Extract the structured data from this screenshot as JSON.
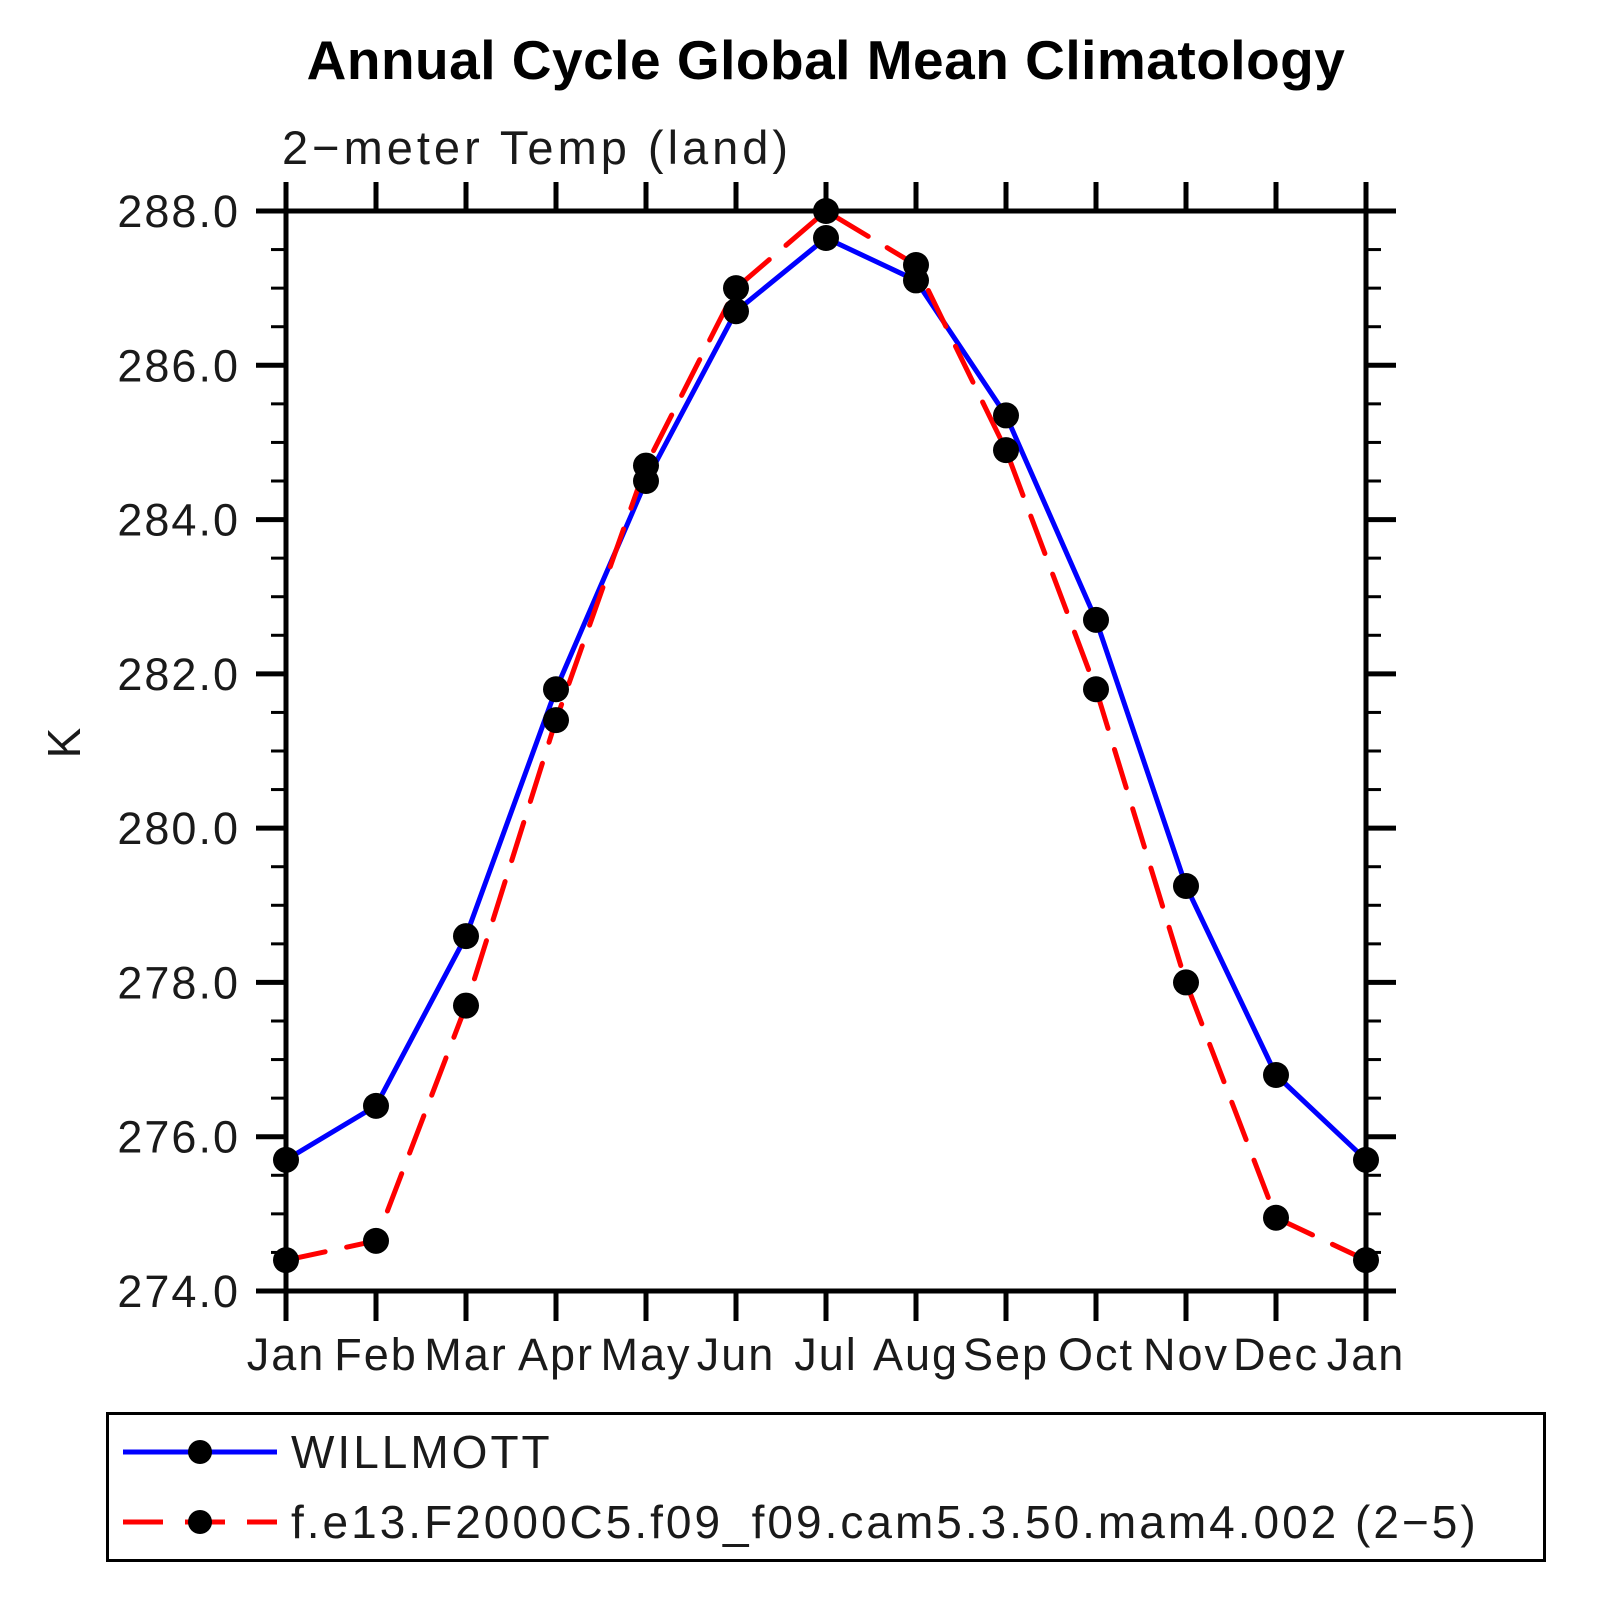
{
  "chart_data": {
    "type": "line",
    "title": "Annual Cycle Global Mean Climatology",
    "subtitle": "2−meter Temp (land)",
    "ylabel": "K",
    "xlabel": "",
    "categories": [
      "Jan",
      "Feb",
      "Mar",
      "Apr",
      "May",
      "Jun",
      "Jul",
      "Aug",
      "Sep",
      "Oct",
      "Nov",
      "Dec",
      "Jan"
    ],
    "series": [
      {
        "name": "WILLMOTT",
        "color": "#0000ff",
        "line_style": "solid",
        "marker": "filled-circle",
        "values": [
          275.7,
          276.4,
          278.6,
          281.8,
          284.5,
          286.7,
          287.65,
          287.1,
          285.35,
          282.7,
          279.25,
          276.8,
          275.7
        ]
      },
      {
        "name": "f.e13.F2000C5.f09_f09.cam5.3.50.mam4.002 (2−5)",
        "color": "#ff0000",
        "line_style": "dashed",
        "marker": "filled-circle",
        "values": [
          274.4,
          274.65,
          277.7,
          281.4,
          284.7,
          287.0,
          288.0,
          287.3,
          284.9,
          281.8,
          278.0,
          274.95,
          274.4
        ]
      }
    ],
    "ylim": [
      274.0,
      288.0
    ],
    "ytick_step": 2.0,
    "ytick_minor_step": 0.5,
    "ytick_labels": [
      "274.0",
      "276.0",
      "278.0",
      "280.0",
      "282.0",
      "284.0",
      "286.0",
      "288.0"
    ],
    "marker_color": "#000000",
    "axis_color": "#000000",
    "grid": false,
    "legend_position": "bottom-left"
  }
}
